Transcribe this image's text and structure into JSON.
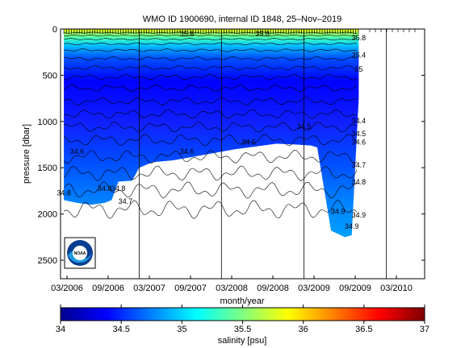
{
  "chart_data": {
    "type": "heatmap",
    "title": "WMO ID 1900690, internal ID 1848, 25–Nov–2019",
    "xlabel": "month/year",
    "ylabel": "pressure [dbar]",
    "x_ticks": [
      "03/2006",
      "09/2006",
      "03/2007",
      "09/2007",
      "03/2008",
      "09/2008",
      "03/2009",
      "09/2009",
      "03/2010"
    ],
    "y_ticks": [
      "0",
      "500",
      "1000",
      "1500",
      "2000",
      "2500"
    ],
    "ylim": [
      2700,
      0
    ],
    "colorbar": {
      "label": "salinity [psu]",
      "range": [
        34,
        37
      ],
      "ticks": [
        "34",
        "34.5",
        "35",
        "35.5",
        "36",
        "36.5",
        "37"
      ],
      "colors": [
        "#00008f",
        "#0000ff",
        "#0080ff",
        "#00ffff",
        "#80ff80",
        "#ffff00",
        "#ff8000",
        "#ff0000",
        "#800000"
      ]
    },
    "profile_bottom_pressure": [
      {
        "date": "2006-02",
        "pressure": 1850
      },
      {
        "date": "2006-04",
        "pressure": 1880
      },
      {
        "date": "2006-06",
        "pressure": 1900
      },
      {
        "date": "2006-08",
        "pressure": 1880
      },
      {
        "date": "2006-09",
        "pressure": 1850
      },
      {
        "date": "2006-10",
        "pressure": 1650
      },
      {
        "date": "2006-12",
        "pressure": 1640
      },
      {
        "date": "2007-01",
        "pressure": 1500
      },
      {
        "date": "2007-03",
        "pressure": 1440
      },
      {
        "date": "2007-06",
        "pressure": 1420
      },
      {
        "date": "2007-09",
        "pressure": 1380
      },
      {
        "date": "2007-12",
        "pressure": 1340
      },
      {
        "date": "2008-03",
        "pressure": 1300
      },
      {
        "date": "2008-06",
        "pressure": 1270
      },
      {
        "date": "2008-09",
        "pressure": 1240
      },
      {
        "date": "2008-12",
        "pressure": 1250
      },
      {
        "date": "2009-02",
        "pressure": 1260
      },
      {
        "date": "2009-03",
        "pressure": 1280
      },
      {
        "date": "2009-05",
        "pressure": 2180
      },
      {
        "date": "2009-07",
        "pressure": 2250
      },
      {
        "date": "2009-08",
        "pressure": 2230
      },
      {
        "date": "2009-09",
        "pressure": 750
      }
    ],
    "contour_labels": [
      {
        "text": "35.8",
        "date": "2007-08",
        "pressure": 80
      },
      {
        "text": "35.8",
        "date": "2008-07",
        "pressure": 80
      },
      {
        "text": "35.8",
        "date": "2009-09",
        "pressure": 120
      },
      {
        "text": "35.4",
        "date": "2009-09",
        "pressure": 310
      },
      {
        "text": "35",
        "date": "2009-09",
        "pressure": 460
      },
      {
        "text": "34.4",
        "date": "2009-09",
        "pressure": 1020
      },
      {
        "text": "34.5",
        "date": "2009-09",
        "pressure": 1160
      },
      {
        "text": "34.6",
        "date": "2009-09",
        "pressure": 1250
      },
      {
        "text": "34.7",
        "date": "2009-09",
        "pressure": 1500
      },
      {
        "text": "34.8",
        "date": "2009-09",
        "pressure": 1680
      },
      {
        "text": "34.9",
        "date": "2009-09",
        "pressure": 2040
      },
      {
        "text": "34.9",
        "date": "2009-08",
        "pressure": 2160
      },
      {
        "text": "34.9",
        "date": "2009-06",
        "pressure": 2000
      },
      {
        "text": "34.8",
        "date": "2006-08",
        "pressure": 1750
      },
      {
        "text": "34.8",
        "date": "2006-10",
        "pressure": 1750
      },
      {
        "text": "34.7",
        "date": "2006-11",
        "pressure": 1890
      },
      {
        "text": "34.8",
        "date": "2006-02",
        "pressure": 1800
      },
      {
        "text": "34.6",
        "date": "2006-04",
        "pressure": 1350
      },
      {
        "text": "34.6",
        "date": "2007-08",
        "pressure": 1350
      },
      {
        "text": "34.5",
        "date": "2008-05",
        "pressure": 1250
      },
      {
        "text": "34.5",
        "date": "2009-01",
        "pressure": 1080
      }
    ],
    "grid": false
  },
  "logo": {
    "text": "NOAA"
  }
}
